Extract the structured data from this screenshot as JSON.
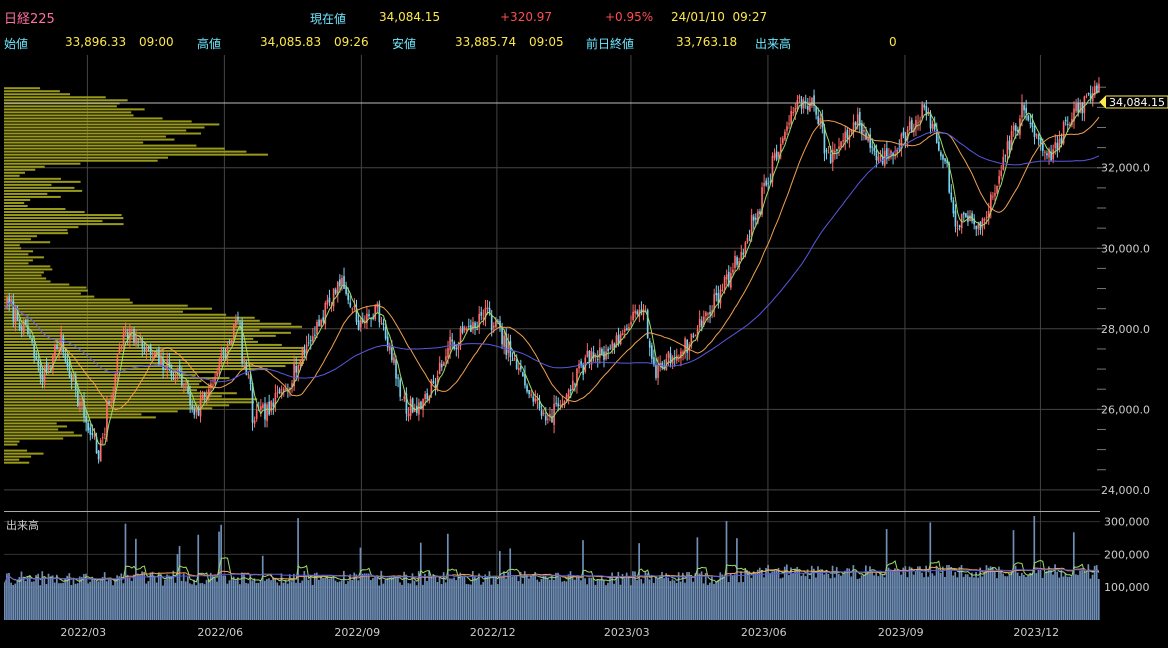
{
  "header": {
    "index_name": "日経225",
    "current_label": "現在値",
    "current_value": "34,084.15",
    "change": "+320.97",
    "change_pct": "+0.95%",
    "datetime": "24/01/10  09:27",
    "open_label": "始値",
    "open_value": "33,896.33",
    "open_time": "09:00",
    "high_label": "高値",
    "high_value": "34,085.83",
    "high_time": "09:26",
    "low_label": "安値",
    "low_value": "33,885.74",
    "low_time": "09:05",
    "prev_close_label": "前日終値",
    "prev_close_value": "33,763.18",
    "volume_label": "出来高",
    "volume_value": "0"
  },
  "volume_panel_label": "出来高",
  "last_price_tag": "34,084.15",
  "colors": {
    "up": "#ff6b6b",
    "down": "#7ad3f0",
    "ma_short": "#9cdc6a",
    "ma_mid": "#f0a050",
    "ma_long": "#5858e0",
    "volume_profile": "#9a9a1a",
    "volume_bar": "#6f8fb8"
  },
  "chart_data": {
    "type": "candlestick",
    "x_ticks": [
      "2022/03",
      "2022/06",
      "2022/09",
      "2022/12",
      "2023/03",
      "2023/06",
      "2023/09",
      "2023/12"
    ],
    "price_axis": {
      "ylim": [
        23500,
        34800
      ],
      "ticks": [
        "24,000.0",
        "26,000.0",
        "28,000.0",
        "30,000.0",
        "32,000.0"
      ]
    },
    "volume_axis": {
      "ylim": [
        0,
        320000
      ],
      "ticks": [
        "100,000",
        "200,000",
        "300,000"
      ]
    },
    "close_path": [
      [
        "2022/01/06",
        28600
      ],
      [
        "2022/01/20",
        27800
      ],
      [
        "2022/01/28",
        26700
      ],
      [
        "2022/02/10",
        27700
      ],
      [
        "2022/02/24",
        26000
      ],
      [
        "2022/03/08",
        24900
      ],
      [
        "2022/03/17",
        26500
      ],
      [
        "2022/03/25",
        28100
      ],
      [
        "2022/04/05",
        27600
      ],
      [
        "2022/04/20",
        27100
      ],
      [
        "2022/05/02",
        26800
      ],
      [
        "2022/05/12",
        25900
      ],
      [
        "2022/05/31",
        27300
      ],
      [
        "2022/06/09",
        28200
      ],
      [
        "2022/06/20",
        25800
      ],
      [
        "2022/07/01",
        26000
      ],
      [
        "2022/07/15",
        26800
      ],
      [
        "2022/07/29",
        27800
      ],
      [
        "2022/08/17",
        29200
      ],
      [
        "2022/08/31",
        28100
      ],
      [
        "2022/09/12",
        28500
      ],
      [
        "2022/09/30",
        26000
      ],
      [
        "2022/10/13",
        26200
      ],
      [
        "2022/10/31",
        27600
      ],
      [
        "2022/11/24",
        28400
      ],
      [
        "2022/12/01",
        28000
      ],
      [
        "2022/12/20",
        26600
      ],
      [
        "2023/01/04",
        25700
      ],
      [
        "2023/01/13",
        26200
      ],
      [
        "2023/01/31",
        27300
      ],
      [
        "2023/02/15",
        27500
      ],
      [
        "2023/03/09",
        28600
      ],
      [
        "2023/03/16",
        26900
      ],
      [
        "2023/04/10",
        27700
      ],
      [
        "2023/04/28",
        28800
      ],
      [
        "2023/05/17",
        30100
      ],
      [
        "2023/06/05",
        32100
      ],
      [
        "2023/06/20",
        33600
      ],
      [
        "2023/07/03",
        33600
      ],
      [
        "2023/07/12",
        32200
      ],
      [
        "2023/07/31",
        33200
      ],
      [
        "2023/08/15",
        32200
      ],
      [
        "2023/08/31",
        32700
      ],
      [
        "2023/09/15",
        33500
      ],
      [
        "2023/09/29",
        31900
      ],
      [
        "2023/10/05",
        30700
      ],
      [
        "2023/10/26",
        30600
      ],
      [
        "2023/11/09",
        32500
      ],
      [
        "2023/11/20",
        33400
      ],
      [
        "2023/12/08",
        32300
      ],
      [
        "2023/12/20",
        33100
      ],
      [
        "2024/01/10",
        34084
      ]
    ],
    "moving_averages": [
      {
        "name": "short",
        "period_days": 5
      },
      {
        "name": "mid",
        "period_days": 25
      },
      {
        "name": "long",
        "period_days": 75
      }
    ],
    "legend": "none",
    "grid": true
  }
}
